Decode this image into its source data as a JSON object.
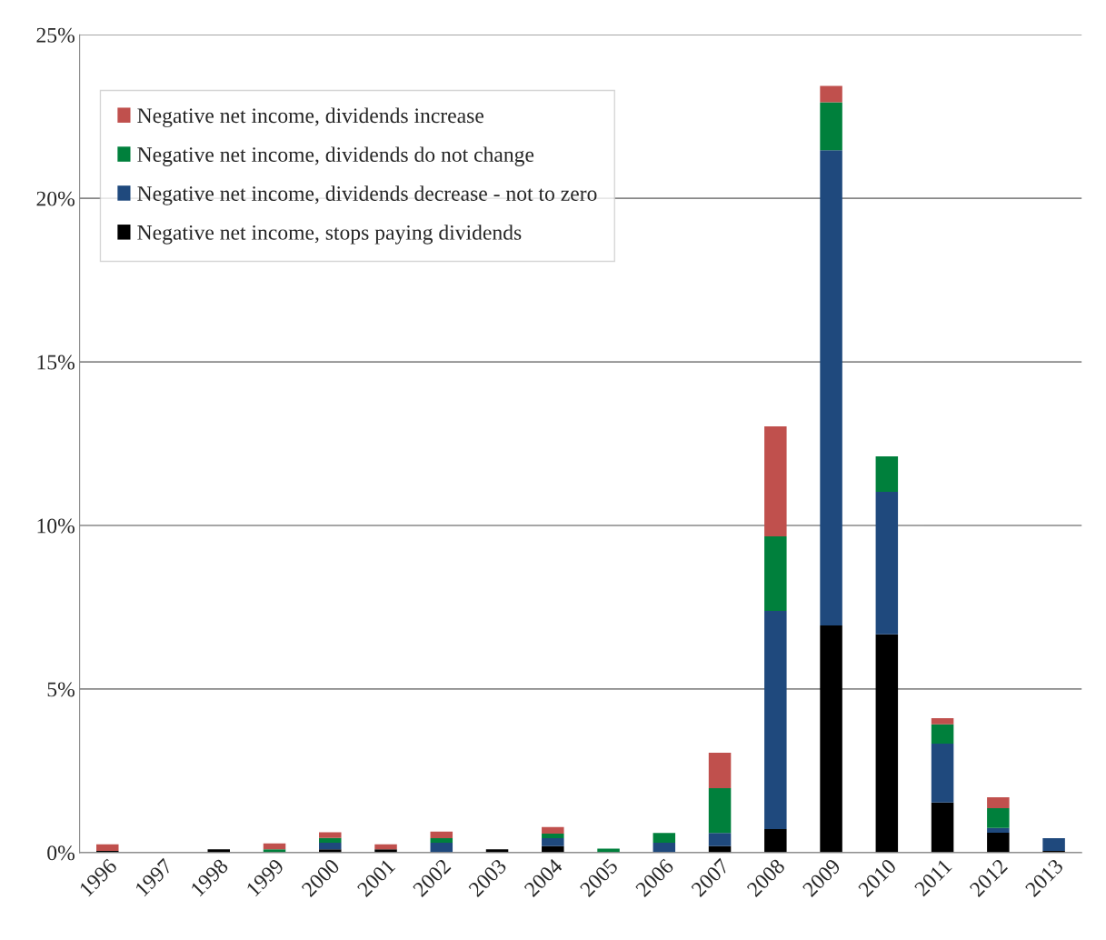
{
  "chart_data": {
    "type": "bar",
    "stacked": true,
    "categories": [
      "1996",
      "1997",
      "1998",
      "1999",
      "2000",
      "2001",
      "2002",
      "2003",
      "2004",
      "2005",
      "2006",
      "2007",
      "2008",
      "2009",
      "2010",
      "2011",
      "2012",
      "2013"
    ],
    "series": [
      {
        "name": "Negative net income, stops paying dividends",
        "color": "#000000",
        "values": [
          0.05,
          0,
          0.1,
          0,
          0.1,
          0.1,
          0,
          0.1,
          0.2,
          0,
          0,
          0.2,
          0.72,
          6.94,
          6.67,
          1.53,
          0.61,
          0.05
        ]
      },
      {
        "name": "Negative net income, dividends decrease - not to zero",
        "color": "#1f497d",
        "values": [
          0,
          0,
          0,
          0,
          0.2,
          0,
          0.3,
          0,
          0.24,
          0,
          0.3,
          0.4,
          6.67,
          14.53,
          4.36,
          1.8,
          0.14,
          0.39
        ]
      },
      {
        "name": "Negative net income, dividends do not change",
        "color": "#00803c",
        "values": [
          0,
          0,
          0,
          0.1,
          0.15,
          0,
          0.14,
          0,
          0.14,
          0.12,
          0.3,
          1.37,
          2.28,
          1.47,
          1.08,
          0.59,
          0.61,
          0
        ]
      },
      {
        "name": "Negative net income, dividends increase",
        "color": "#c0504d",
        "values": [
          0.2,
          0,
          0,
          0.18,
          0.17,
          0.15,
          0.2,
          0,
          0.2,
          0,
          0,
          1.08,
          3.36,
          0.5,
          0,
          0.19,
          0.33,
          0
        ]
      }
    ],
    "ylim": [
      0,
      25
    ],
    "yticks": [
      {
        "value": 0,
        "label": "0%"
      },
      {
        "value": 5,
        "label": "5%"
      },
      {
        "value": 10,
        "label": "10%"
      },
      {
        "value": 15,
        "label": "15%"
      },
      {
        "value": 20,
        "label": "20%"
      },
      {
        "value": 25,
        "label": "25%"
      }
    ],
    "grid": "y",
    "legend": "top left"
  }
}
